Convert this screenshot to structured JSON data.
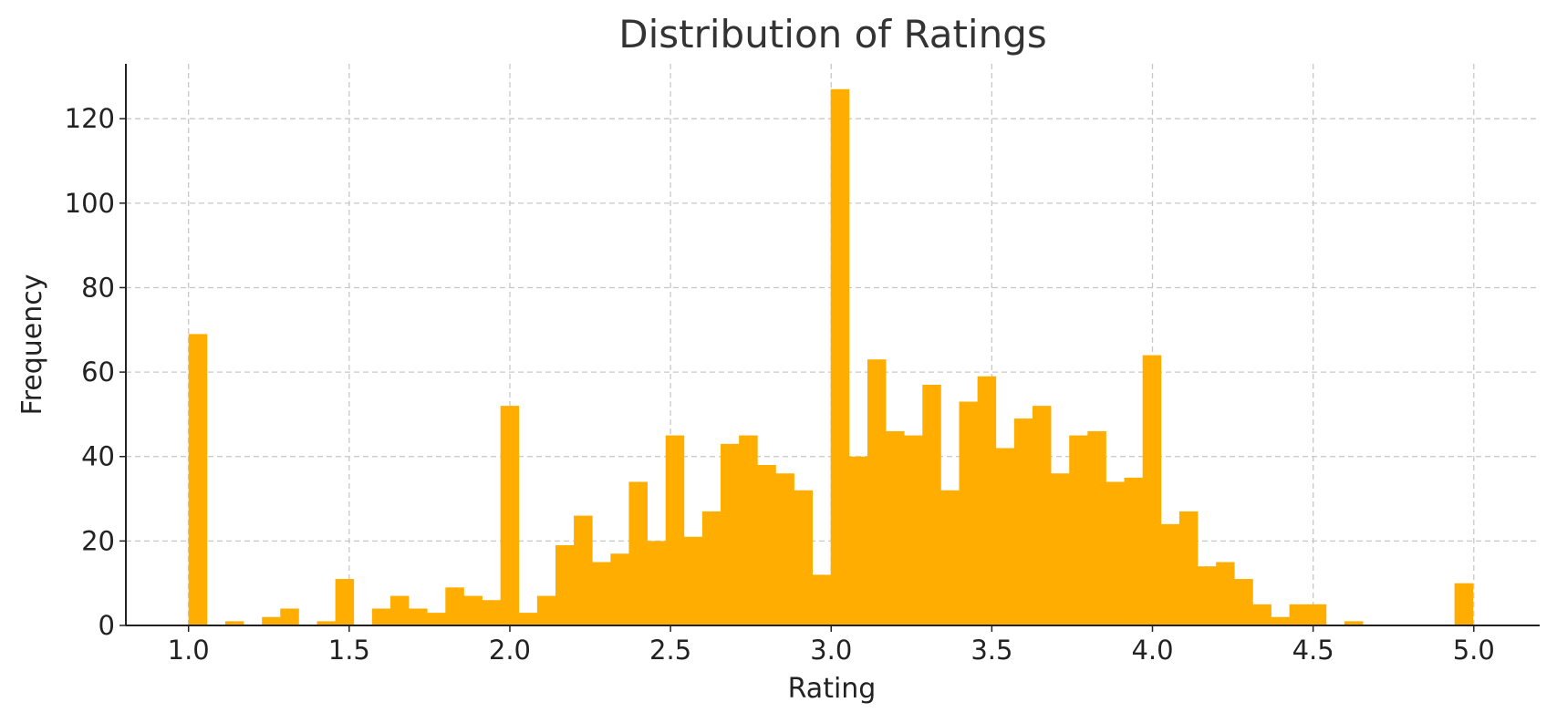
{
  "chart_data": {
    "type": "bar",
    "title": "Distribution of Ratings",
    "xlabel": "Rating",
    "ylabel": "Frequency",
    "xlim": [
      0.805,
      5.205
    ],
    "ylim": [
      0,
      133
    ],
    "xticks": [
      1.0,
      1.5,
      2.0,
      2.5,
      3.0,
      3.5,
      4.0,
      4.5,
      5.0
    ],
    "xtick_labels": [
      "1.0",
      "1.5",
      "2.0",
      "2.5",
      "3.0",
      "3.5",
      "4.0",
      "4.5",
      "5.0"
    ],
    "yticks": [
      0,
      20,
      40,
      60,
      80,
      100,
      120
    ],
    "ytick_labels": [
      "0",
      "20",
      "40",
      "60",
      "80",
      "100",
      "120"
    ],
    "grid": true,
    "bar_color": "#FFAE00",
    "bin_start": 1.0,
    "bin_width": 0.0571,
    "values": [
      69,
      0,
      1,
      0,
      2,
      4,
      0,
      1,
      11,
      0,
      4,
      7,
      4,
      3,
      9,
      7,
      6,
      52,
      3,
      7,
      19,
      26,
      15,
      17,
      34,
      20,
      45,
      21,
      27,
      43,
      45,
      38,
      36,
      32,
      12,
      127,
      40,
      63,
      46,
      45,
      57,
      32,
      53,
      59,
      42,
      49,
      52,
      36,
      45,
      46,
      34,
      35,
      64,
      24,
      27,
      14,
      15,
      11,
      5,
      2,
      5,
      5,
      0,
      1,
      0,
      0,
      0,
      0,
      0,
      10
    ]
  }
}
